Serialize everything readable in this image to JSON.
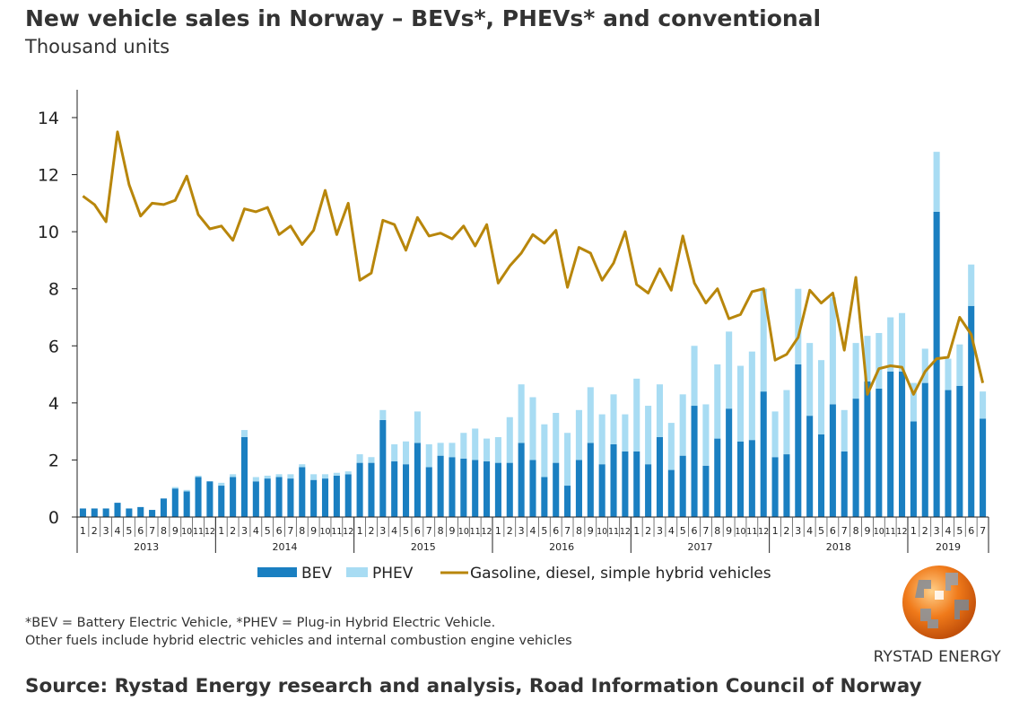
{
  "header": {
    "title": "New vehicle sales in Norway – BEVs*, PHEVs* and conventional",
    "subtitle": "Thousand units"
  },
  "legend": {
    "bev": "BEV",
    "phev": "PHEV",
    "conventional": "Gasoline, diesel, simple hybrid vehicles"
  },
  "footnotes": {
    "line1": "*BEV = Battery Electric Vehicle, *PHEV = Plug-in Hybrid Electric Vehicle.",
    "line2": "Other fuels include hybrid electric vehicles and internal combustion engine vehicles"
  },
  "source": "Source: Rystad Energy research and analysis, Road Information Council of Norway",
  "brand": {
    "name": "RYSTAD ENERGY",
    "logo_icon": "rystad-globe-logo"
  },
  "colors": {
    "bev": "#1a7fc1",
    "phev": "#a8dcf3",
    "conventional": "#b8860b",
    "logo": "#f07a1a"
  },
  "chart_data": {
    "type": "bar",
    "stacked": true,
    "title": "New vehicle sales in Norway – BEVs*, PHEVs* and conventional",
    "ylabel": "Thousand units",
    "ylim": [
      0,
      15
    ],
    "yticks": [
      0,
      2,
      4,
      6,
      8,
      10,
      12,
      14
    ],
    "grid": false,
    "legend_position": "bottom",
    "years": [
      {
        "label": "2013",
        "months": 12
      },
      {
        "label": "2014",
        "months": 12
      },
      {
        "label": "2015",
        "months": 12
      },
      {
        "label": "2016",
        "months": 12
      },
      {
        "label": "2017",
        "months": 12
      },
      {
        "label": "2018",
        "months": 12
      },
      {
        "label": "2019",
        "months": 7
      }
    ],
    "categories": [
      "1",
      "2",
      "3",
      "4",
      "5",
      "6",
      "7",
      "8",
      "9",
      "10",
      "11",
      "12",
      "1",
      "2",
      "3",
      "4",
      "5",
      "6",
      "7",
      "8",
      "9",
      "10",
      "11",
      "12",
      "1",
      "2",
      "3",
      "4",
      "5",
      "6",
      "7",
      "8",
      "9",
      "10",
      "11",
      "12",
      "1",
      "2",
      "3",
      "4",
      "5",
      "6",
      "7",
      "8",
      "9",
      "10",
      "11",
      "12",
      "1",
      "2",
      "3",
      "4",
      "5",
      "6",
      "7",
      "8",
      "9",
      "10",
      "11",
      "12",
      "1",
      "2",
      "3",
      "4",
      "5",
      "6",
      "7",
      "8",
      "9",
      "10",
      "11",
      "12",
      "1",
      "2",
      "3",
      "4",
      "5",
      "6",
      "7"
    ],
    "series": [
      {
        "name": "BEV",
        "kind": "bar",
        "values": [
          0.3,
          0.3,
          0.3,
          0.5,
          0.3,
          0.35,
          0.25,
          0.65,
          1.0,
          0.9,
          1.4,
          1.25,
          1.1,
          1.4,
          2.8,
          1.25,
          1.35,
          1.4,
          1.35,
          1.75,
          1.3,
          1.35,
          1.45,
          1.5,
          1.9,
          1.9,
          3.4,
          1.95,
          1.85,
          2.6,
          1.75,
          2.15,
          2.1,
          2.05,
          2.0,
          1.95,
          1.9,
          1.9,
          2.6,
          2.0,
          1.4,
          1.9,
          1.1,
          2.0,
          2.6,
          1.85,
          2.55,
          2.3,
          2.3,
          1.85,
          2.8,
          1.65,
          2.15,
          3.9,
          1.8,
          2.75,
          3.8,
          2.65,
          2.7,
          4.4,
          2.1,
          2.2,
          5.35,
          3.55,
          2.9,
          3.95,
          2.3,
          4.15,
          4.75,
          4.5,
          5.1,
          5.1,
          3.35,
          4.7,
          10.7,
          4.45,
          4.6,
          7.4,
          3.45
        ]
      },
      {
        "name": "PHEV",
        "kind": "bar",
        "values": [
          0,
          0,
          0,
          0,
          0,
          0,
          0,
          0,
          0.05,
          0.05,
          0.05,
          0,
          0.1,
          0.1,
          0.25,
          0.15,
          0.1,
          0.1,
          0.15,
          0.1,
          0.2,
          0.15,
          0.1,
          0.1,
          0.3,
          0.2,
          0.35,
          0.6,
          0.8,
          1.1,
          0.8,
          0.45,
          0.5,
          0.9,
          1.1,
          0.8,
          0.9,
          1.6,
          2.05,
          2.2,
          1.85,
          1.75,
          1.85,
          1.75,
          1.95,
          1.75,
          1.75,
          1.3,
          2.55,
          2.05,
          1.85,
          1.65,
          2.15,
          2.1,
          2.15,
          2.6,
          2.7,
          2.65,
          3.1,
          3.6,
          1.6,
          2.25,
          2.65,
          2.55,
          2.6,
          3.75,
          1.45,
          1.95,
          1.6,
          1.95,
          1.9,
          2.05,
          1.35,
          1.2,
          2.1,
          1.1,
          1.45,
          1.45,
          0.95
        ]
      },
      {
        "name": "Gasoline, diesel, simple hybrid vehicles",
        "kind": "line",
        "values": [
          11.25,
          10.95,
          10.35,
          13.5,
          11.65,
          10.55,
          11.0,
          10.95,
          11.1,
          11.95,
          10.6,
          10.1,
          10.2,
          9.7,
          10.8,
          10.7,
          10.85,
          9.9,
          10.2,
          9.55,
          10.05,
          11.45,
          9.9,
          11.0,
          8.3,
          8.55,
          10.4,
          10.25,
          9.35,
          10.5,
          9.85,
          9.95,
          9.75,
          10.2,
          9.5,
          10.25,
          8.2,
          8.8,
          9.25,
          9.9,
          9.6,
          10.05,
          8.05,
          9.45,
          9.25,
          8.3,
          8.9,
          10.0,
          8.15,
          7.85,
          8.7,
          7.95,
          9.85,
          8.2,
          7.5,
          8.0,
          6.95,
          7.1,
          7.9,
          8.0,
          5.5,
          5.7,
          6.3,
          7.95,
          7.5,
          7.85,
          5.85,
          8.4,
          4.3,
          5.2,
          5.3,
          5.25,
          4.3,
          5.1,
          5.55,
          5.6,
          7.0,
          6.4,
          4.7
        ]
      }
    ]
  }
}
